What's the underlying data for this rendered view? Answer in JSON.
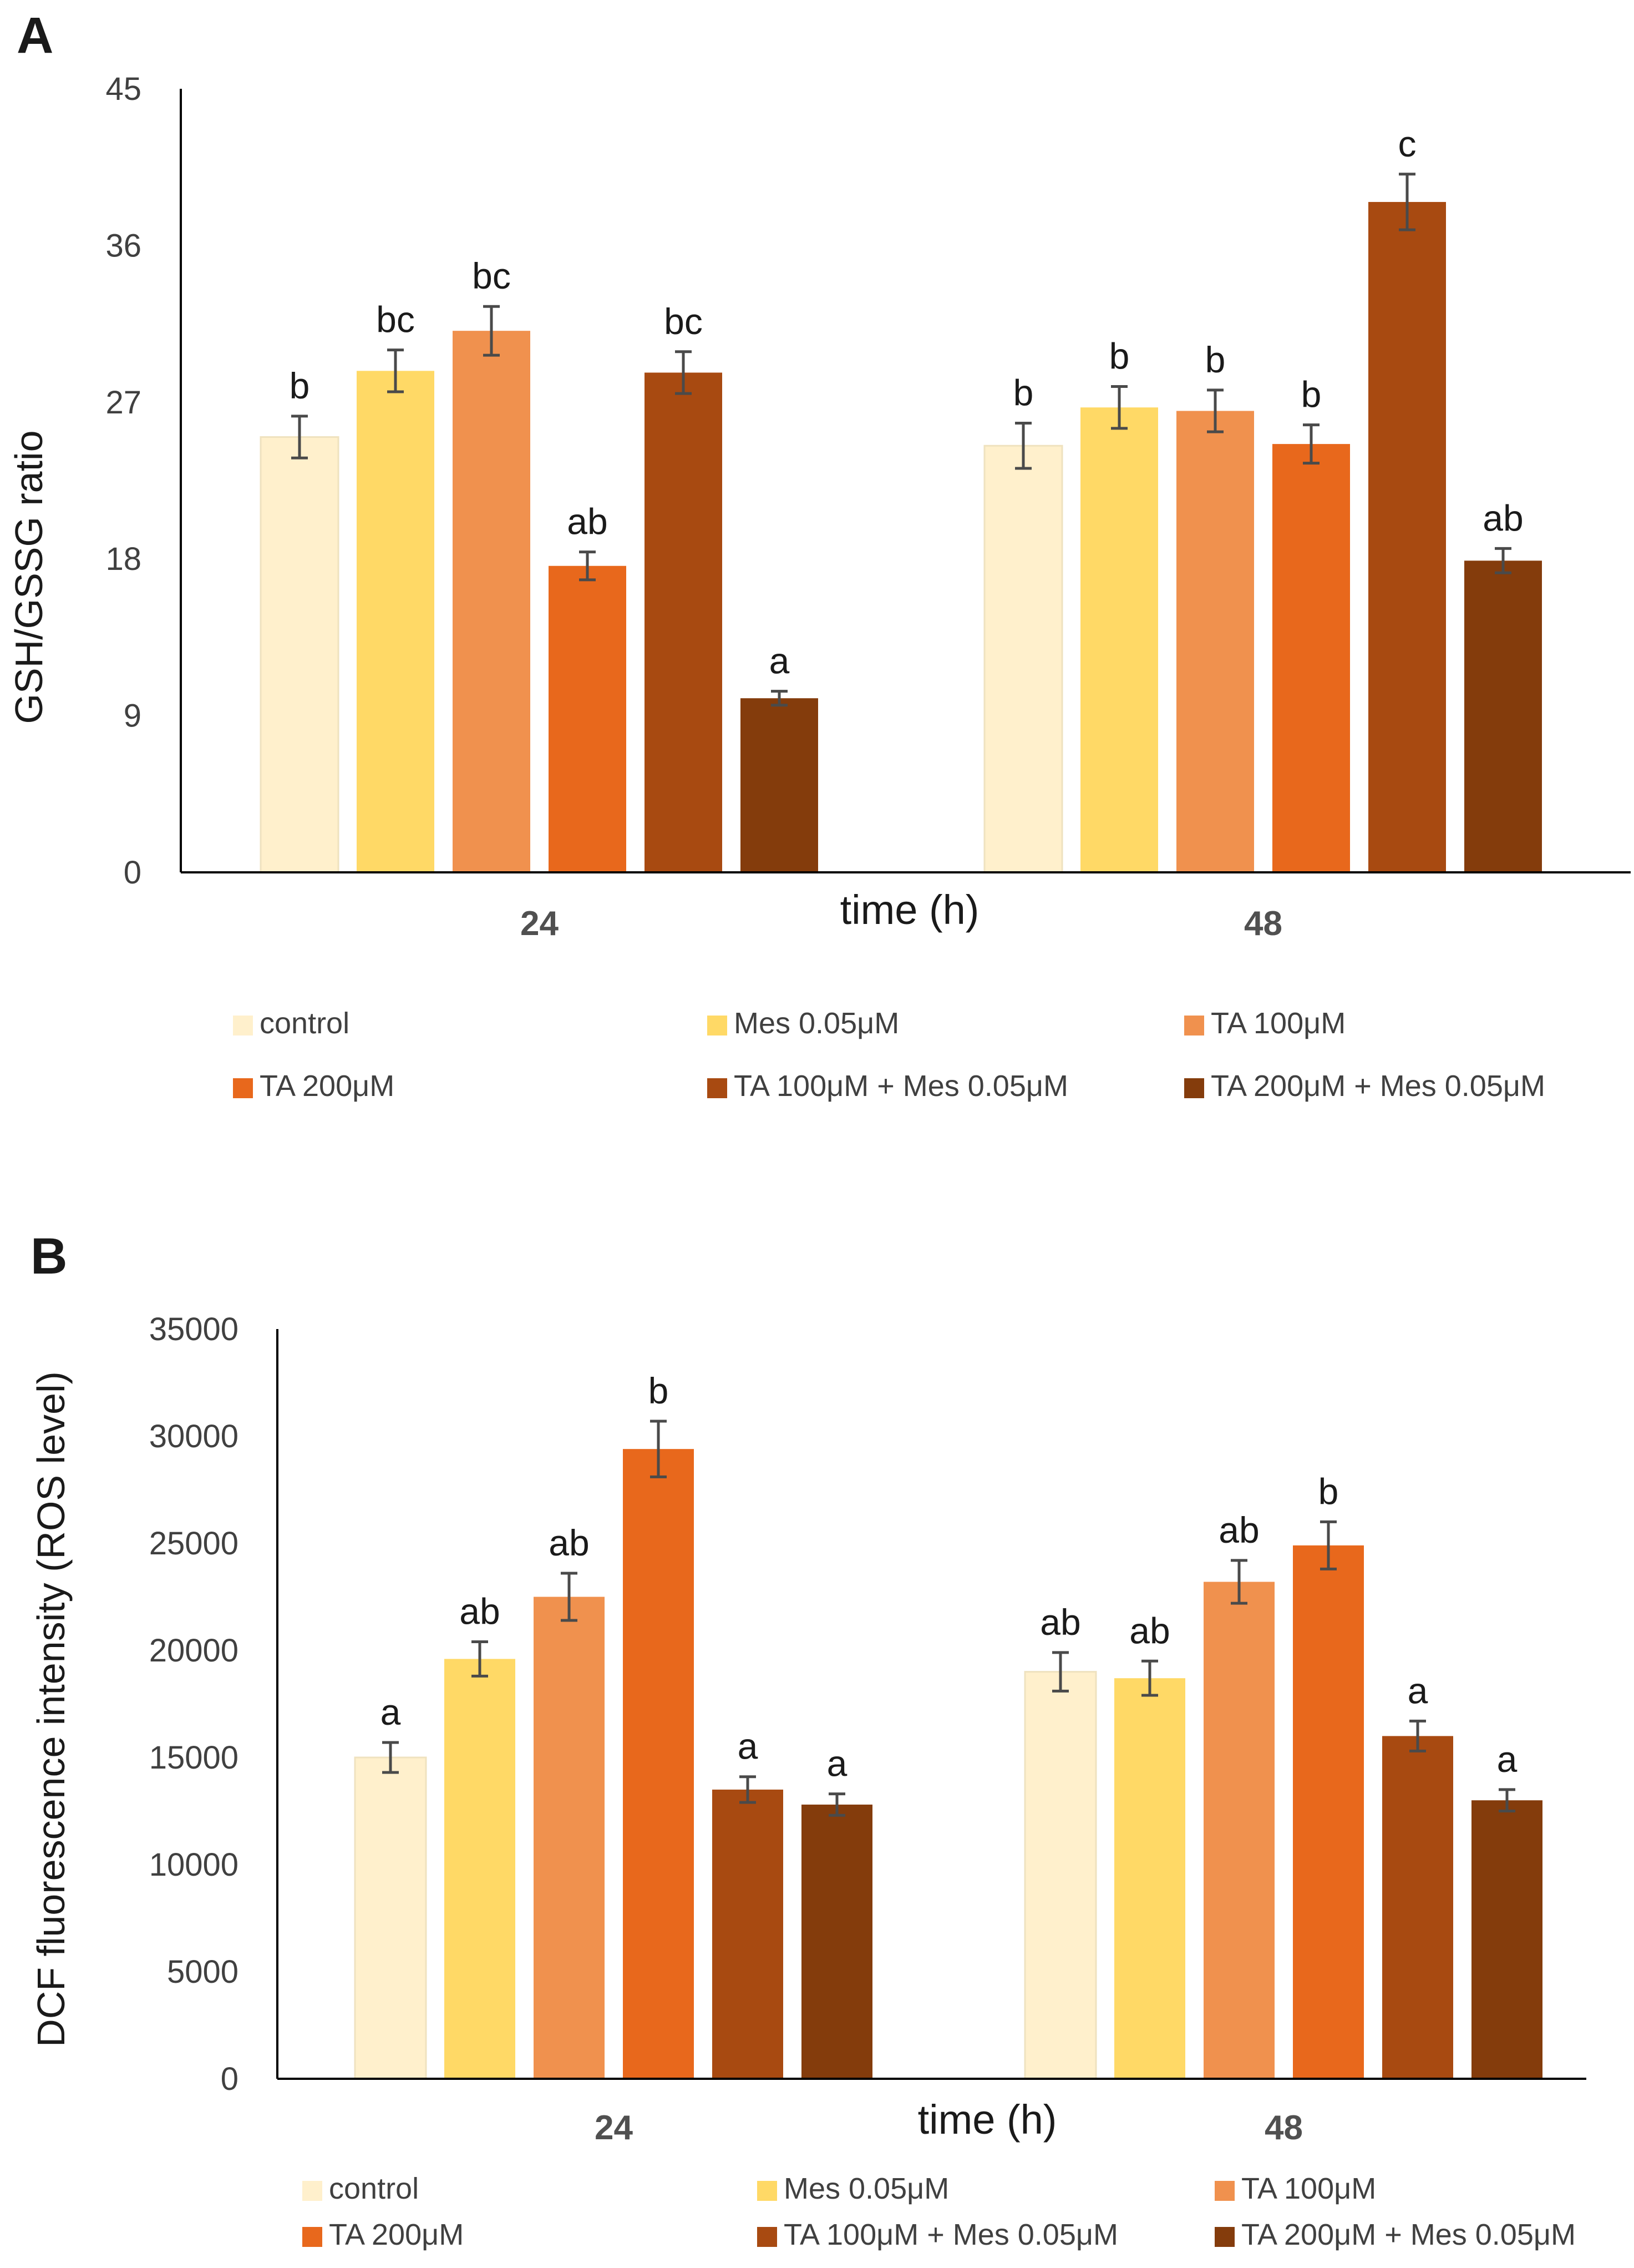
{
  "colors": {
    "control": "#FFF0CC",
    "mes": "#FFD966",
    "ta100": "#F0914E",
    "ta200": "#E8681C",
    "ta100mes": "#A84A11",
    "ta200mes": "#843C0C",
    "errorbar": "#4a4a4a",
    "axis": "#000000"
  },
  "chart_data": [
    {
      "panel_label": "A",
      "type": "bar",
      "xlabel": "time (h)",
      "ylabel": "GSH/GSSG ratio",
      "ylim": [
        0,
        45
      ],
      "yticks": [
        "0",
        "9",
        "18",
        "27",
        "36",
        "45"
      ],
      "grid": false,
      "categories": [
        "24",
        "48"
      ],
      "legend_position": "bottom",
      "series": [
        {
          "name": "control",
          "color_key": "control",
          "values": [
            25,
            24.5
          ],
          "errors": [
            1.2,
            1.3
          ],
          "labels": [
            "b",
            "b"
          ]
        },
        {
          "name": "Mes 0.05μM",
          "color_key": "mes",
          "values": [
            28.8,
            26.7
          ],
          "errors": [
            1.2,
            1.2
          ],
          "labels": [
            "bc",
            "b"
          ]
        },
        {
          "name": "TA 100μM",
          "color_key": "ta100",
          "values": [
            31.1,
            26.5
          ],
          "errors": [
            1.4,
            1.2
          ],
          "labels": [
            "bc",
            "b"
          ]
        },
        {
          "name": "TA 200μM",
          "color_key": "ta200",
          "values": [
            17.6,
            24.6
          ],
          "errors": [
            0.8,
            1.1
          ],
          "labels": [
            "ab",
            "b"
          ]
        },
        {
          "name": "TA 100μM + Mes 0.05μM",
          "color_key": "ta100mes",
          "values": [
            28.7,
            38.5
          ],
          "errors": [
            1.2,
            1.6
          ],
          "labels": [
            "bc",
            "c"
          ]
        },
        {
          "name": "TA 200μM + Mes 0.05μM",
          "color_key": "ta200mes",
          "values": [
            10,
            17.9
          ],
          "errors": [
            0.4,
            0.7
          ],
          "labels": [
            "a",
            "ab"
          ]
        }
      ]
    },
    {
      "panel_label": "B",
      "type": "bar",
      "xlabel": "time (h)",
      "ylabel": "DCF fluorescence intensity (ROS level)",
      "ylim": [
        0,
        35000
      ],
      "yticks": [
        "0",
        "5000",
        "10000",
        "15000",
        "20000",
        "25000",
        "30000",
        "35000"
      ],
      "grid": false,
      "categories": [
        "24",
        "48"
      ],
      "legend_position": "bottom",
      "series": [
        {
          "name": "control",
          "color_key": "control",
          "values": [
            15000,
            19000
          ],
          "errors": [
            700,
            900
          ],
          "labels": [
            "a",
            "ab"
          ]
        },
        {
          "name": "Mes 0.05μM",
          "color_key": "mes",
          "values": [
            19600,
            18700
          ],
          "errors": [
            800,
            800
          ],
          "labels": [
            "ab",
            "ab"
          ]
        },
        {
          "name": "TA 100μM",
          "color_key": "ta100",
          "values": [
            22500,
            23200
          ],
          "errors": [
            1100,
            1000
          ],
          "labels": [
            "ab",
            "ab"
          ]
        },
        {
          "name": "TA 200μM",
          "color_key": "ta200",
          "values": [
            29400,
            24900
          ],
          "errors": [
            1300,
            1100
          ],
          "labels": [
            "b",
            "b"
          ]
        },
        {
          "name": "TA 100μM + Mes 0.05μM",
          "color_key": "ta100mes",
          "values": [
            13500,
            16000
          ],
          "errors": [
            600,
            700
          ],
          "labels": [
            "a",
            "a"
          ]
        },
        {
          "name": "TA 200μM + Mes 0.05μM",
          "color_key": "ta200mes",
          "values": [
            12800,
            13000
          ],
          "errors": [
            500,
            500
          ],
          "labels": [
            "a",
            "a"
          ]
        }
      ]
    }
  ]
}
